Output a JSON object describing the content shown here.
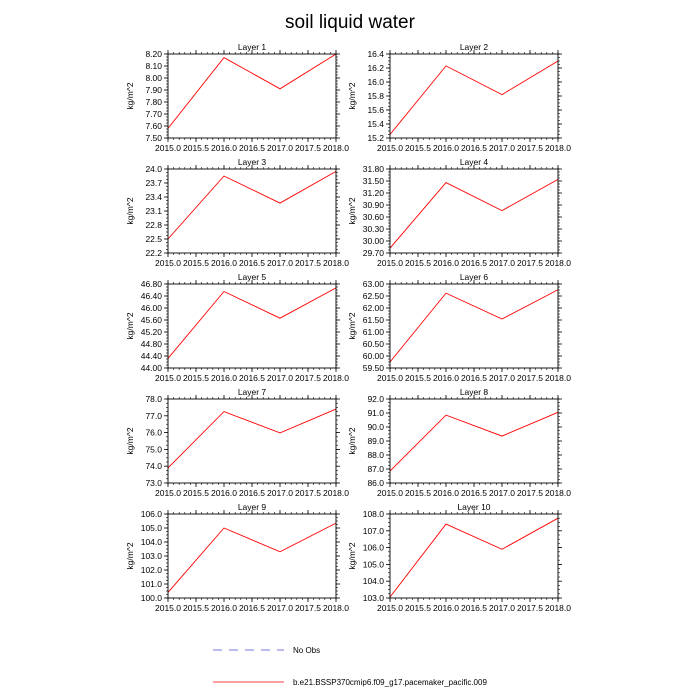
{
  "title": "soil liquid water",
  "colors": {
    "series": "#ff0000",
    "axis": "#000000",
    "obs": "#4b4bd6"
  },
  "legend": {
    "obs_label": "No Obs",
    "series_label": "b.e21.BSSP370cmip6.f09_g17.pacemaker_pacific.009"
  },
  "chart_data": [
    {
      "type": "line",
      "title": "Layer 1",
      "ylabel": "kg/m^2",
      "x": [
        2015.0,
        2016.0,
        2017.0,
        2018.0
      ],
      "xlim": [
        2015.0,
        2018.0
      ],
      "xticks": [
        "2015.0",
        "2015.5",
        "2016.0",
        "2016.5",
        "2017.0",
        "2017.5",
        "2018.0"
      ],
      "series": [
        {
          "values": [
            7.58,
            8.17,
            7.91,
            8.2
          ]
        }
      ],
      "ylim": [
        7.5,
        8.2
      ],
      "yticks": [
        "7.50",
        "7.60",
        "7.70",
        "7.80",
        "7.90",
        "8.00",
        "8.10",
        "8.20"
      ]
    },
    {
      "type": "line",
      "title": "Layer 2",
      "ylabel": "kg/m^2",
      "x": [
        2015.0,
        2016.0,
        2017.0,
        2018.0
      ],
      "xlim": [
        2015.0,
        2018.0
      ],
      "xticks": [
        "2015.0",
        "2015.5",
        "2016.0",
        "2016.5",
        "2017.0",
        "2017.5",
        "2018.0"
      ],
      "series": [
        {
          "values": [
            15.25,
            16.23,
            15.82,
            16.3
          ]
        }
      ],
      "ylim": [
        15.2,
        16.4
      ],
      "yticks": [
        "15.2",
        "15.4",
        "15.6",
        "15.8",
        "16.0",
        "16.2",
        "16.4"
      ]
    },
    {
      "type": "line",
      "title": "Layer 3",
      "ylabel": "kg/m^2",
      "x": [
        2015.0,
        2016.0,
        2017.0,
        2018.0
      ],
      "xlim": [
        2015.0,
        2018.0
      ],
      "xticks": [
        "2015.0",
        "2015.5",
        "2016.0",
        "2016.5",
        "2017.0",
        "2017.5",
        "2018.0"
      ],
      "series": [
        {
          "values": [
            22.5,
            23.85,
            23.27,
            23.95
          ]
        }
      ],
      "ylim": [
        22.2,
        24.0
      ],
      "yticks": [
        "22.2",
        "22.5",
        "22.8",
        "23.1",
        "23.4",
        "23.7",
        "24.0"
      ]
    },
    {
      "type": "line",
      "title": "Layer 4",
      "ylabel": "kg/m^2",
      "x": [
        2015.0,
        2016.0,
        2017.0,
        2018.0
      ],
      "xlim": [
        2015.0,
        2018.0
      ],
      "xticks": [
        "2015.0",
        "2015.5",
        "2016.0",
        "2016.5",
        "2017.0",
        "2017.5",
        "2018.0"
      ],
      "series": [
        {
          "values": [
            29.82,
            31.46,
            30.76,
            31.54
          ]
        }
      ],
      "ylim": [
        29.7,
        31.8
      ],
      "yticks": [
        "29.70",
        "30.00",
        "30.30",
        "30.60",
        "30.90",
        "31.20",
        "31.50",
        "31.80"
      ]
    },
    {
      "type": "line",
      "title": "Layer 5",
      "ylabel": "kg/m^2",
      "x": [
        2015.0,
        2016.0,
        2017.0,
        2018.0
      ],
      "xlim": [
        2015.0,
        2018.0
      ],
      "xticks": [
        "2015.0",
        "2015.5",
        "2016.0",
        "2016.5",
        "2017.0",
        "2017.5",
        "2018.0"
      ],
      "series": [
        {
          "values": [
            44.32,
            46.55,
            45.66,
            46.67
          ]
        }
      ],
      "ylim": [
        44.0,
        46.8
      ],
      "yticks": [
        "44.00",
        "44.40",
        "44.80",
        "45.20",
        "45.60",
        "46.00",
        "46.40",
        "46.80"
      ]
    },
    {
      "type": "line",
      "title": "Layer 6",
      "ylabel": "kg/m^2",
      "x": [
        2015.0,
        2016.0,
        2017.0,
        2018.0
      ],
      "xlim": [
        2015.0,
        2018.0
      ],
      "xticks": [
        "2015.0",
        "2015.5",
        "2016.0",
        "2016.5",
        "2017.0",
        "2017.5",
        "2018.0"
      ],
      "series": [
        {
          "values": [
            59.75,
            62.62,
            61.54,
            62.76
          ]
        }
      ],
      "ylim": [
        59.5,
        63.0
      ],
      "yticks": [
        "59.50",
        "60.00",
        "60.50",
        "61.00",
        "61.50",
        "62.00",
        "62.50",
        "63.00"
      ]
    },
    {
      "type": "line",
      "title": "Layer 7",
      "ylabel": "kg/m^2",
      "x": [
        2015.0,
        2016.0,
        2017.0,
        2018.0
      ],
      "xlim": [
        2015.0,
        2018.0
      ],
      "xticks": [
        "2015.0",
        "2015.5",
        "2016.0",
        "2016.5",
        "2017.0",
        "2017.5",
        "2018.0"
      ],
      "series": [
        {
          "values": [
            73.9,
            77.25,
            75.98,
            77.4
          ]
        }
      ],
      "ylim": [
        73.0,
        78.0
      ],
      "yticks": [
        "73.0",
        "74.0",
        "75.0",
        "76.0",
        "77.0",
        "78.0"
      ]
    },
    {
      "type": "line",
      "title": "Layer 8",
      "ylabel": "kg/m^2",
      "x": [
        2015.0,
        2016.0,
        2017.0,
        2018.0
      ],
      "xlim": [
        2015.0,
        2018.0
      ],
      "xticks": [
        "2015.0",
        "2015.5",
        "2016.0",
        "2016.5",
        "2017.0",
        "2017.5",
        "2018.0"
      ],
      "series": [
        {
          "values": [
            86.85,
            90.85,
            89.35,
            91.05
          ]
        }
      ],
      "ylim": [
        86.0,
        92.0
      ],
      "yticks": [
        "86.0",
        "87.0",
        "88.0",
        "89.0",
        "90.0",
        "91.0",
        "92.0"
      ]
    },
    {
      "type": "line",
      "title": "Layer 9",
      "ylabel": "kg/m^2",
      "x": [
        2015.0,
        2016.0,
        2017.0,
        2018.0
      ],
      "xlim": [
        2015.0,
        2018.0
      ],
      "xticks": [
        "2015.0",
        "2015.5",
        "2016.0",
        "2016.5",
        "2017.0",
        "2017.5",
        "2018.0"
      ],
      "series": [
        {
          "values": [
            100.4,
            105.0,
            103.3,
            105.35
          ]
        }
      ],
      "ylim": [
        100.0,
        106.0
      ],
      "yticks": [
        "100.0",
        "101.0",
        "102.0",
        "103.0",
        "104.0",
        "105.0",
        "106.0"
      ]
    },
    {
      "type": "line",
      "title": "Layer 10",
      "ylabel": "kg/m^2",
      "x": [
        2015.0,
        2016.0,
        2017.0,
        2018.0
      ],
      "xlim": [
        2015.0,
        2018.0
      ],
      "xticks": [
        "2015.0",
        "2015.5",
        "2016.0",
        "2016.5",
        "2017.0",
        "2017.5",
        "2018.0"
      ],
      "series": [
        {
          "values": [
            103.05,
            107.4,
            105.9,
            107.75
          ]
        }
      ],
      "ylim": [
        103.0,
        108.0
      ],
      "yticks": [
        "103.0",
        "104.0",
        "105.0",
        "106.0",
        "107.0",
        "108.0"
      ]
    }
  ]
}
